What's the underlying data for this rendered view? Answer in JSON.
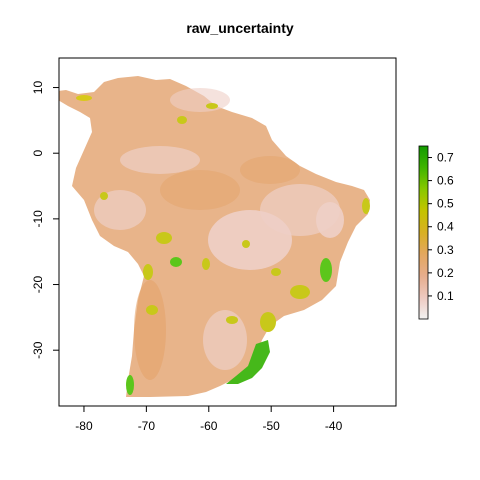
{
  "title": "raw_uncertainty",
  "map": {
    "x_ticks": [
      {
        "value": -80,
        "label": "-80"
      },
      {
        "value": -70,
        "label": "-70"
      },
      {
        "value": -60,
        "label": "-60"
      },
      {
        "value": -50,
        "label": "-50"
      },
      {
        "value": -40,
        "label": "-40"
      }
    ],
    "y_ticks": [
      {
        "value": 10,
        "label": "10"
      },
      {
        "value": 0,
        "label": "0"
      },
      {
        "value": -10,
        "label": "-10"
      },
      {
        "value": -20,
        "label": "-20"
      },
      {
        "value": -30,
        "label": "-30"
      }
    ],
    "xlim": [
      -84,
      -30
    ],
    "ylim": [
      -38.5,
      14.5
    ]
  },
  "legend": {
    "range": [
      0,
      0.75
    ],
    "ticks": [
      {
        "value": 0.1,
        "label": "0.1"
      },
      {
        "value": 0.2,
        "label": "0.2"
      },
      {
        "value": 0.3,
        "label": "0.3"
      },
      {
        "value": 0.4,
        "label": "0.4"
      },
      {
        "value": 0.5,
        "label": "0.5"
      },
      {
        "value": 0.6,
        "label": "0.6"
      },
      {
        "value": 0.7,
        "label": "0.7"
      }
    ],
    "colors": [
      "#f2f2f2",
      "#eec9c0",
      "#e6ad8c",
      "#e3a75f",
      "#d8b023",
      "#c4c400",
      "#88c800",
      "#3fb400",
      "#139b00"
    ]
  },
  "colors": {
    "land_base": "#e8b48a",
    "land_light": "#eecfc6",
    "land_dark": "#e4a46a",
    "yellow": "#d8c81a",
    "green": "#5cc61b"
  }
}
